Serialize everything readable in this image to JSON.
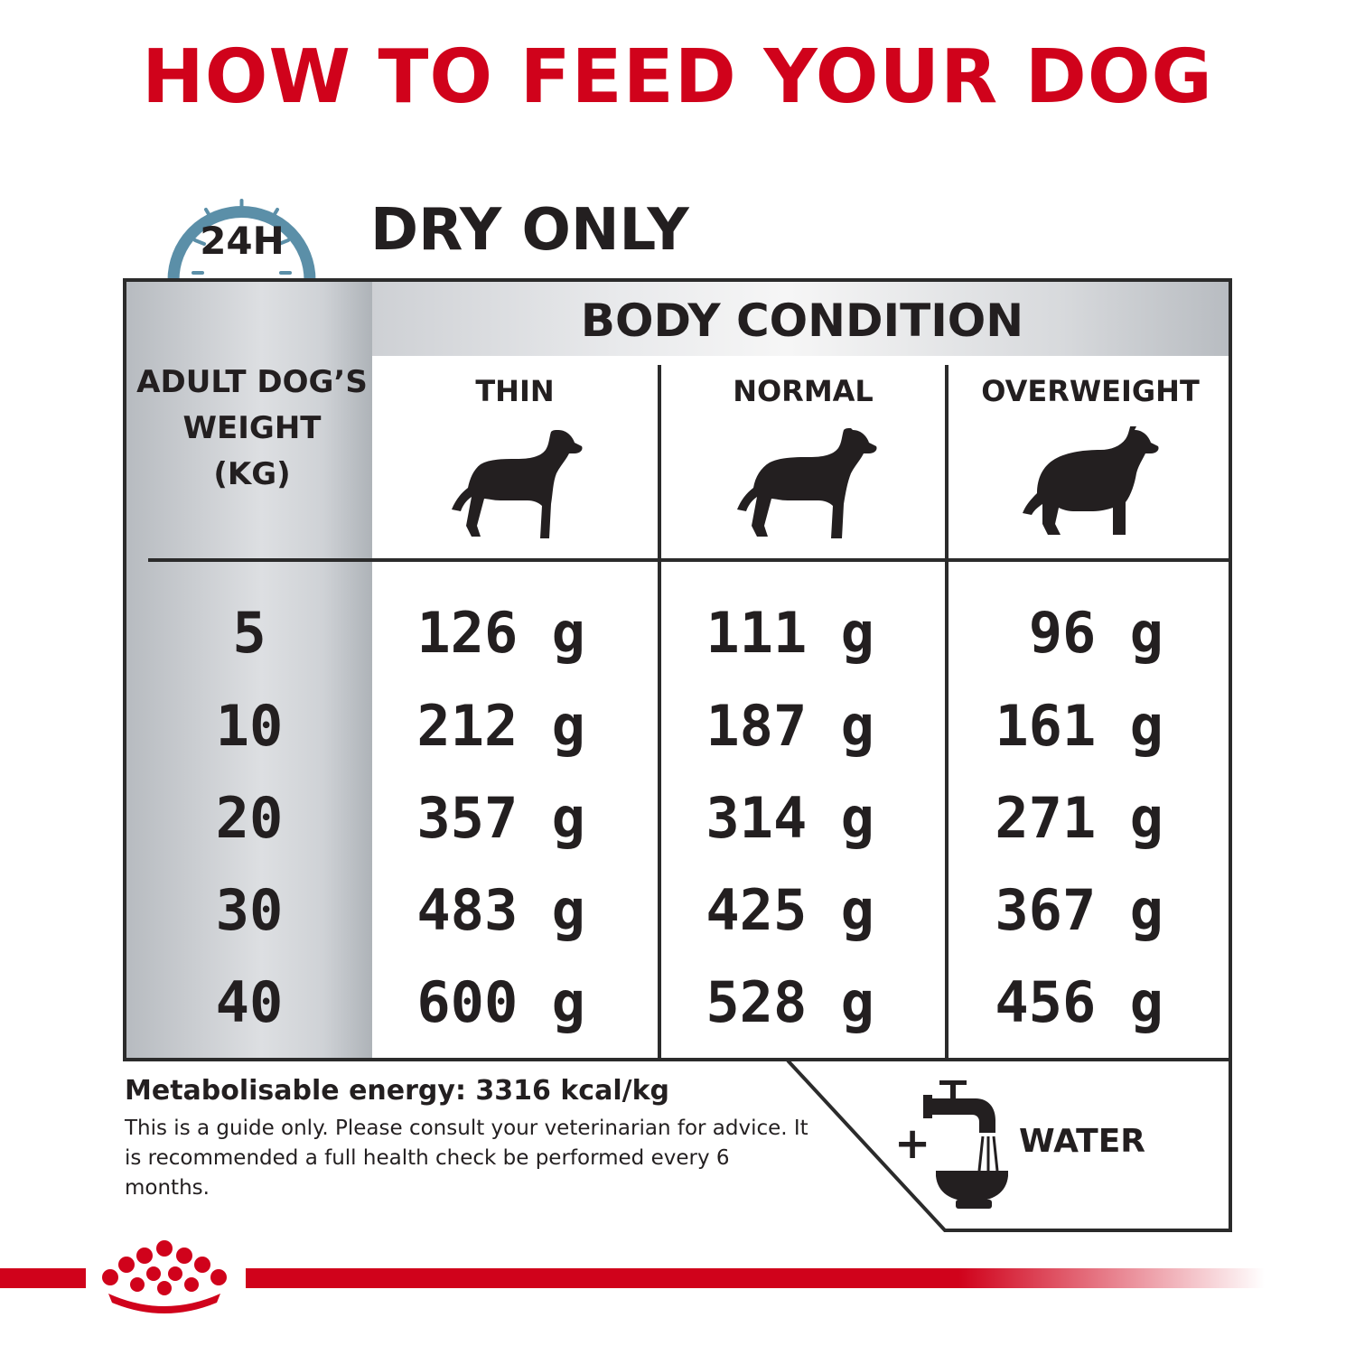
{
  "title": "HOW TO FEED YOUR DOG",
  "clock_label": "24H",
  "mode_label": "DRY ONLY",
  "table": {
    "group_header": "BODY CONDITION",
    "weight_header_lines": [
      "ADULT DOG’S",
      "WEIGHT",
      "(KG)"
    ],
    "columns": [
      "THIN",
      "NORMAL",
      "OVERWEIGHT"
    ],
    "rows": [
      {
        "weight": "5",
        "values": [
          "126 g",
          "111 g",
          "96 g"
        ]
      },
      {
        "weight": "10",
        "values": [
          "212 g",
          "187 g",
          "161 g"
        ]
      },
      {
        "weight": "20",
        "values": [
          "357 g",
          "314 g",
          "271 g"
        ]
      },
      {
        "weight": "30",
        "values": [
          "483 g",
          "425 g",
          "367 g"
        ]
      },
      {
        "weight": "40",
        "values": [
          "600 g",
          "528 g",
          "456 g"
        ]
      }
    ]
  },
  "energy": "Metabolisable energy: 3316 kcal/kg",
  "note": "This is a guide only. Please consult your veterinarian for advice. It is recommended a full health check be performed every 6 months.",
  "water_plus": "+",
  "water_label": "WATER",
  "colors": {
    "brand_red": "#d0021b",
    "clock_blue": "#5b8fa8",
    "text_dark": "#231f20"
  },
  "icons": [
    "clock-icon",
    "dog-thin-icon",
    "dog-normal-icon",
    "dog-overweight-icon",
    "water-tap-icon",
    "royal-canin-crown-icon"
  ]
}
